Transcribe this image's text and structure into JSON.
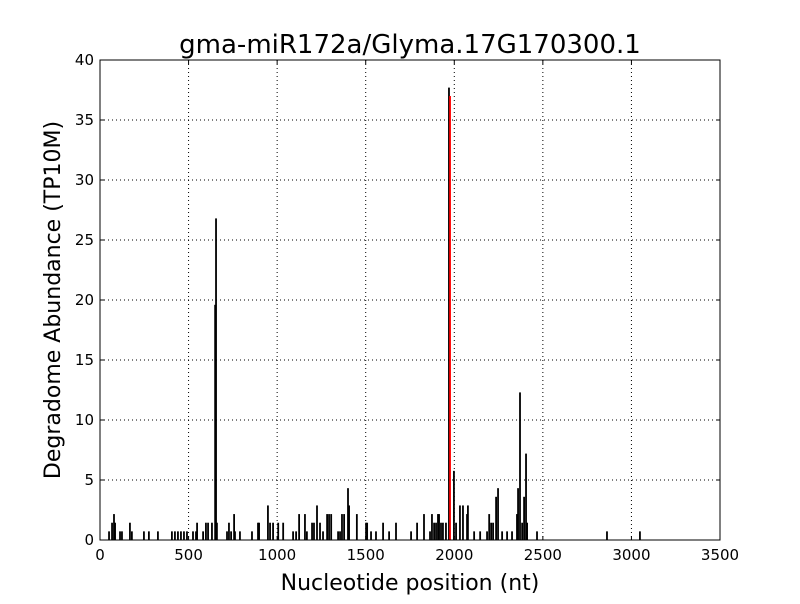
{
  "chart_data": {
    "type": "bar",
    "title": "gma-miR172a/Glyma.17G170300.1",
    "xlabel": "Nucleotide position (nt)",
    "ylabel": "Degradome Abundance (TP10M)",
    "xlim": [
      0,
      3500
    ],
    "ylim": [
      0,
      40
    ],
    "xticks": [
      "0",
      "500",
      "1000",
      "1500",
      "2000",
      "2500",
      "3000",
      "3500"
    ],
    "yticks": [
      "0",
      "5",
      "10",
      "15",
      "20",
      "25",
      "30",
      "35",
      "40"
    ],
    "grid": true,
    "colors": {
      "bars": "#000000",
      "target_site": "#ff0000"
    },
    "series": [
      {
        "x": [
          51,
          68,
          79,
          85,
          113,
          124,
          169,
          180,
          248,
          276,
          327,
          406,
          423,
          440,
          457,
          474,
          491,
          525,
          542,
          548,
          582,
          598,
          610,
          632,
          650,
          655,
          660,
          717,
          728,
          740,
          757,
          762,
          790,
          858,
          892,
          898,
          948,
          960,
          977,
          1006,
          1034,
          1090,
          1107,
          1124,
          1157,
          1168,
          1197,
          1208,
          1225,
          1242,
          1259,
          1282,
          1293,
          1305,
          1344,
          1355,
          1366,
          1378,
          1400,
          1406,
          1450,
          1502,
          1508,
          1530,
          1558,
          1598,
          1632,
          1671,
          1756,
          1790,
          1829,
          1863,
          1874,
          1886,
          1897,
          1908,
          1914,
          1925,
          1936,
          1953,
          1970,
          1998,
          2010,
          2032,
          2049,
          2072,
          2077,
          2112,
          2146,
          2185,
          2197,
          2208,
          2219,
          2236,
          2247,
          2270,
          2298,
          2326,
          2354,
          2360,
          2371,
          2383,
          2394,
          2405,
          2411,
          2467,
          2862,
          3048
        ],
        "values": [
          0.72,
          1.44,
          2.16,
          1.44,
          0.72,
          0.72,
          1.44,
          0.72,
          0.72,
          0.72,
          0.72,
          0.72,
          0.72,
          0.72,
          0.72,
          0.72,
          0.72,
          0.72,
          0.72,
          1.44,
          0.72,
          1.44,
          1.44,
          1.44,
          19.6,
          26.8,
          1.44,
          0.72,
          1.44,
          0.72,
          2.16,
          0.72,
          0.72,
          0.72,
          1.44,
          1.44,
          2.88,
          1.44,
          1.44,
          1.44,
          1.44,
          0.72,
          0.72,
          2.16,
          2.16,
          0.72,
          1.44,
          1.44,
          2.88,
          1.44,
          0.72,
          2.16,
          2.16,
          2.16,
          0.72,
          0.72,
          2.16,
          2.16,
          4.32,
          2.88,
          2.16,
          1.44,
          1.44,
          0.72,
          0.72,
          1.44,
          0.72,
          1.44,
          0.72,
          1.44,
          2.16,
          0.72,
          2.16,
          1.44,
          1.44,
          2.16,
          2.16,
          1.44,
          1.44,
          1.44,
          37.7,
          5.76,
          1.44,
          2.88,
          2.88,
          2.16,
          2.88,
          0.72,
          0.72,
          0.72,
          2.16,
          1.44,
          1.44,
          3.6,
          4.32,
          0.72,
          0.72,
          0.72,
          2.16,
          4.32,
          12.3,
          1.44,
          3.6,
          7.2,
          1.44,
          0.72,
          0.72,
          0.72
        ]
      },
      {
        "x": [
          1976
        ],
        "values": [
          37.0
        ]
      }
    ]
  }
}
